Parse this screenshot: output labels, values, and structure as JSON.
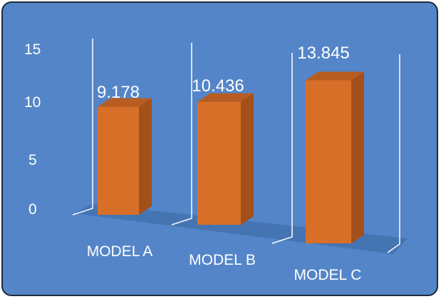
{
  "chart_data": {
    "type": "bar",
    "style": "3d-column",
    "categories": [
      "MODEL A",
      "MODEL B",
      "MODEL C"
    ],
    "values": [
      9.178,
      10.436,
      13.845
    ],
    "data_labels": [
      "9.178",
      "10.436",
      "13.845"
    ],
    "y_ticks": [
      "0",
      "5",
      "10",
      "15"
    ],
    "ylim": [
      0,
      15
    ],
    "title": "",
    "xlabel": "",
    "ylabel": "",
    "grid": false,
    "legend": "none",
    "colors": {
      "background": "#5485c8",
      "bar_front": "#d86f28",
      "bar_side": "#a3501a",
      "bar_top": "#b85c1f",
      "floor": "#4574b3",
      "axis": "#ffffff",
      "frame_border": "#1f2b3a"
    }
  }
}
